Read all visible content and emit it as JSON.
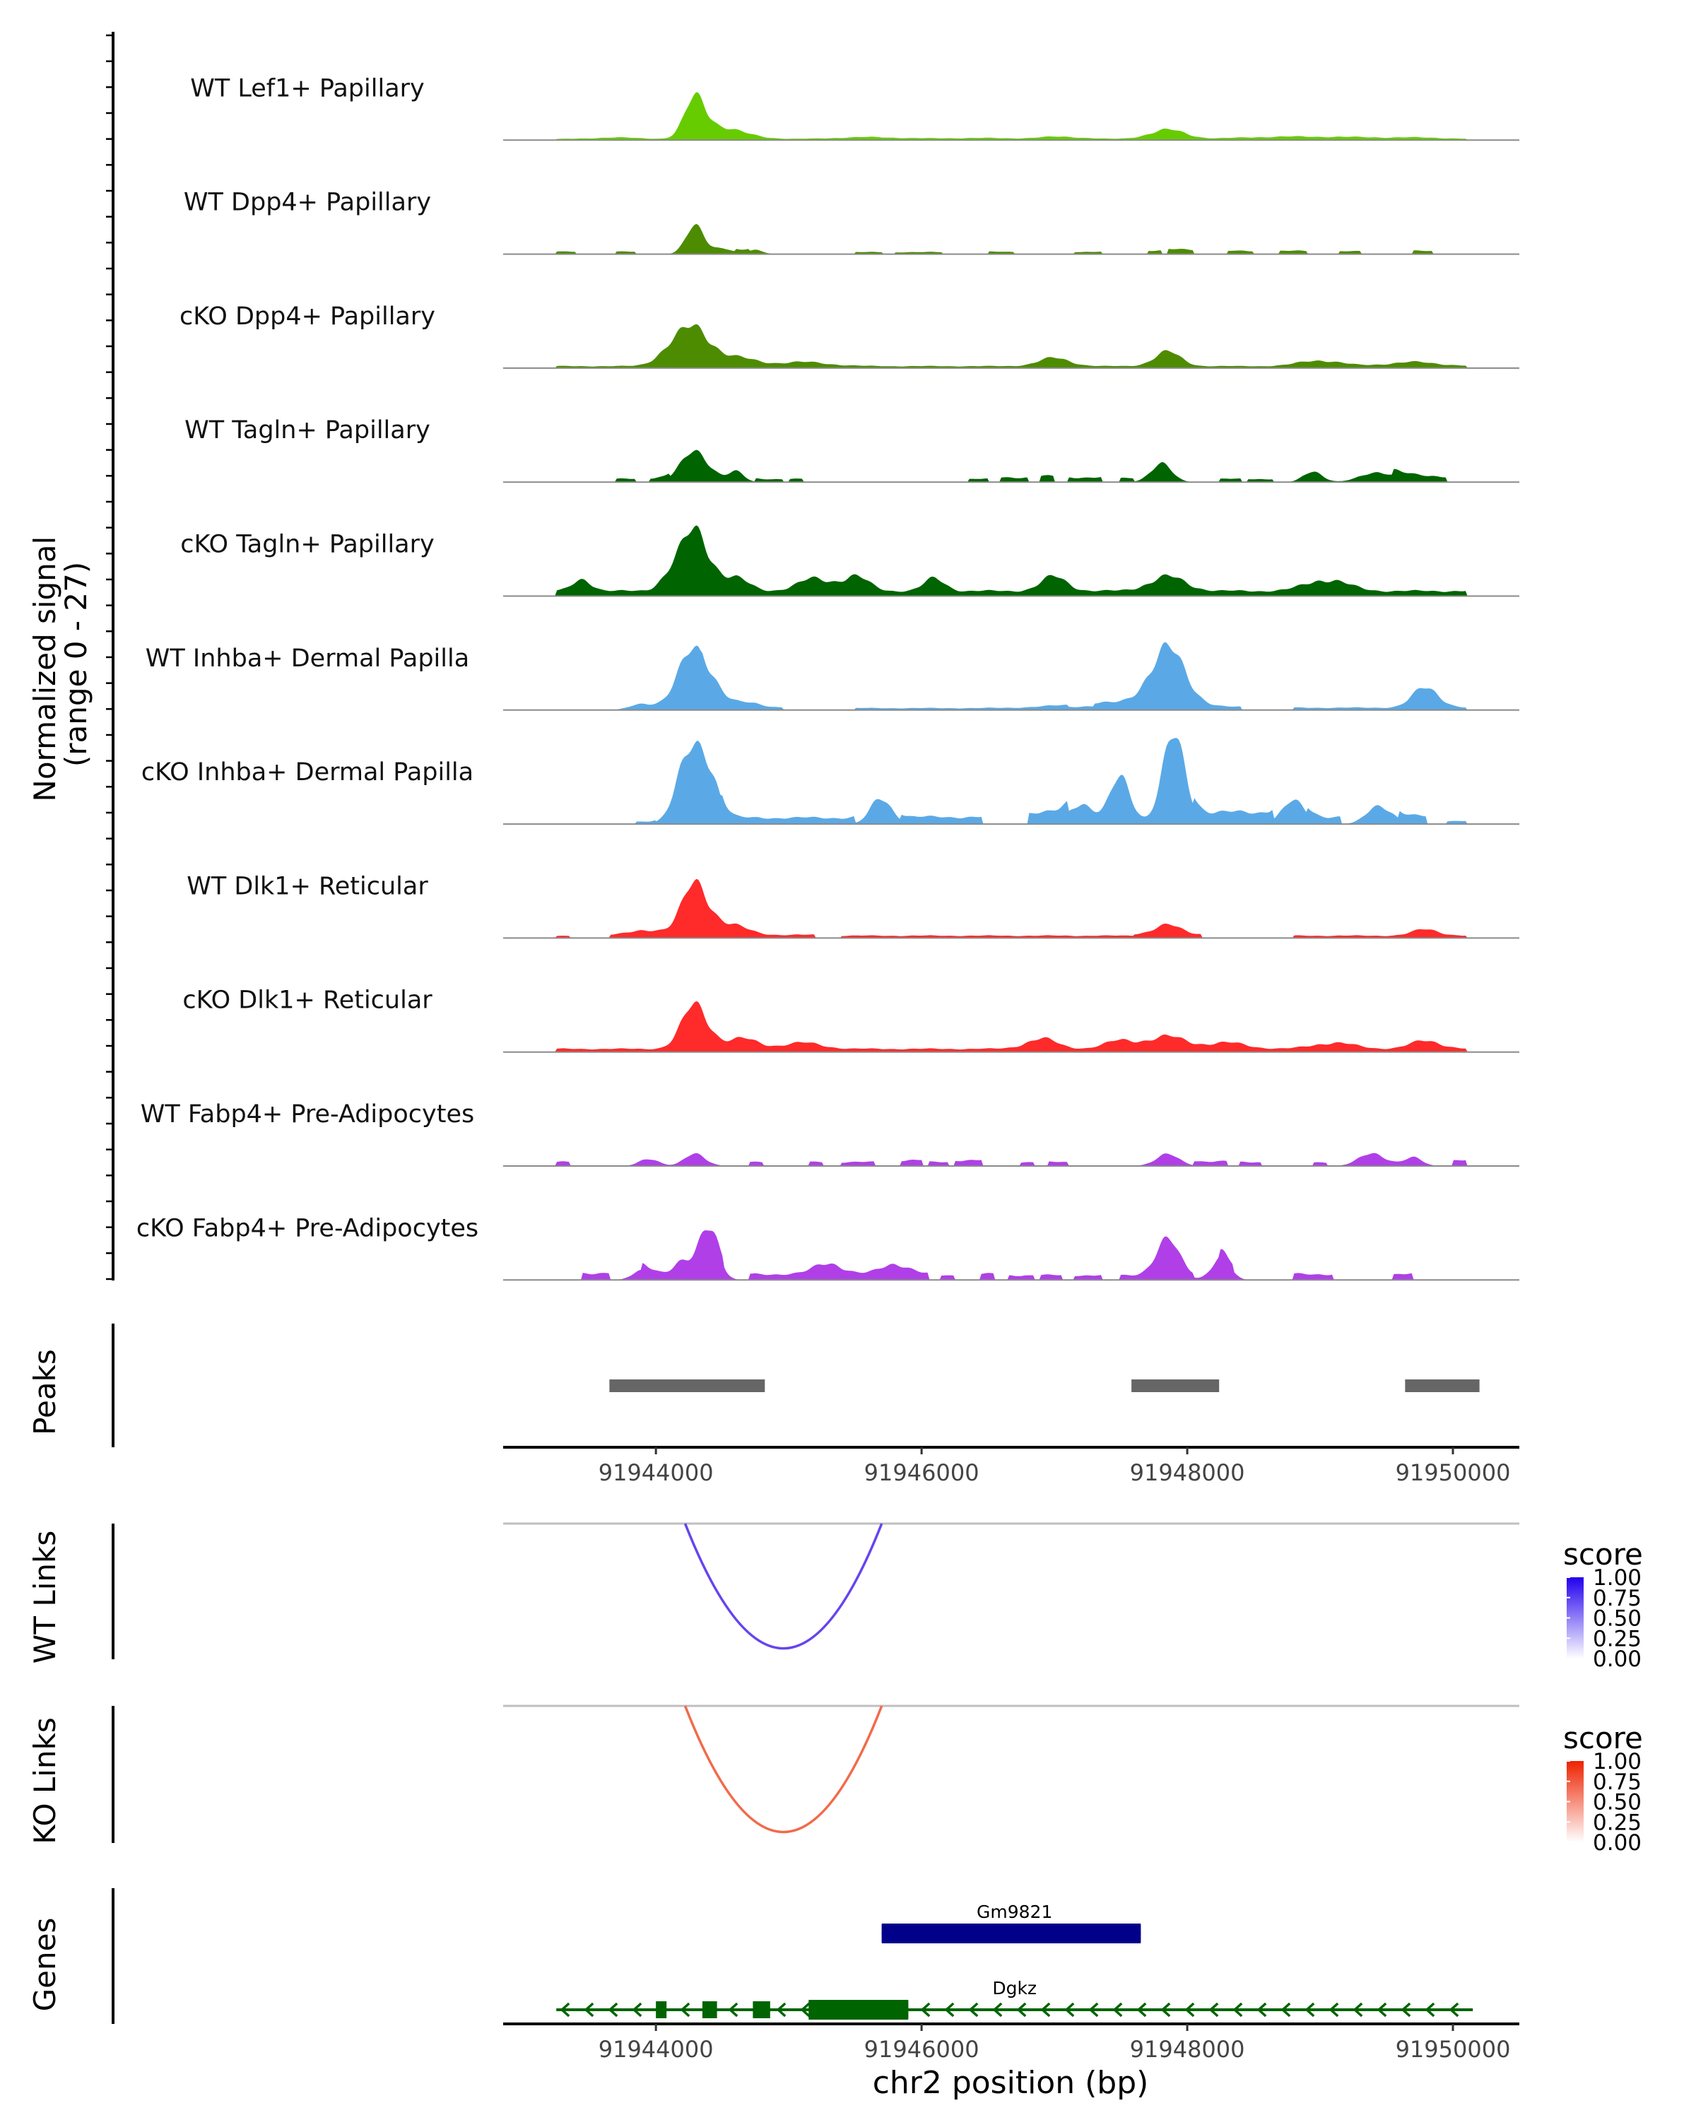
{
  "chart_data": {
    "type": "area",
    "region": {
      "chrom": "chr2",
      "start": 91942850,
      "end": 91950500
    },
    "xlabel": "chr2 position (bp)",
    "xticks": [
      91944000,
      91946000,
      91948000,
      91950000
    ],
    "signal_axis": {
      "label_line1": "Normalized signal",
      "label_line2": "(range 0 - 27)",
      "range": [
        0,
        27
      ]
    },
    "tracks": [
      {
        "name": "WT Lef1+ Papillary",
        "color": "#66cc00",
        "peaks": [
          [
            91944300,
            9.5,
            80
          ],
          [
            91944450,
            2.5,
            130
          ],
          [
            91944650,
            1.0,
            150
          ],
          [
            91943700,
            0.4,
            200
          ],
          [
            91945600,
            0.5,
            260
          ],
          [
            91946400,
            0.3,
            250
          ],
          [
            91947050,
            0.6,
            180
          ],
          [
            91947850,
            2.3,
            140
          ],
          [
            91948600,
            0.5,
            260
          ],
          [
            91949100,
            0.5,
            260
          ],
          [
            91949700,
            0.4,
            260
          ]
        ],
        "bins": [
          [
            91943250,
            91950100,
            0.25
          ]
        ]
      },
      {
        "name": "WT Dpp4+ Papillary",
        "color": "#4d8c00",
        "peaks": [
          [
            91944300,
            7.0,
            70
          ],
          [
            91944500,
            1.5,
            70
          ],
          [
            91944750,
            1.0,
            60
          ]
        ],
        "bins": [
          [
            91943250,
            91943400,
            0.6
          ],
          [
            91943700,
            91943850,
            0.6
          ],
          [
            91944600,
            91944700,
            0.6
          ],
          [
            91945500,
            91945700,
            0.5
          ],
          [
            91945800,
            91946150,
            0.5
          ],
          [
            91946500,
            91946700,
            0.6
          ],
          [
            91947150,
            91947350,
            0.6
          ],
          [
            91947700,
            91947800,
            0.9
          ],
          [
            91947850,
            91948050,
            1.2
          ],
          [
            91948300,
            91948500,
            0.8
          ],
          [
            91948700,
            91948900,
            0.8
          ],
          [
            91949150,
            91949300,
            0.7
          ],
          [
            91949700,
            91949850,
            0.8
          ]
        ]
      },
      {
        "name": "cKO Dpp4+ Papillary",
        "color": "#4d8c00",
        "peaks": [
          [
            91944300,
            9.0,
            120
          ],
          [
            91944100,
            3.5,
            100
          ],
          [
            91944600,
            2.0,
            150
          ],
          [
            91945100,
            1.0,
            200
          ],
          [
            91947000,
            2.0,
            120
          ],
          [
            91947850,
            3.5,
            100
          ],
          [
            91949000,
            1.5,
            150
          ],
          [
            91949700,
            1.0,
            200
          ]
        ],
        "bins": [
          [
            91943250,
            91950100,
            0.5
          ]
        ]
      },
      {
        "name": "WT Tagln+ Papillary",
        "color": "#006400",
        "peaks": [
          [
            91944300,
            7.5,
            110
          ],
          [
            91944600,
            2.5,
            60
          ],
          [
            91947800,
            4.5,
            80
          ],
          [
            91948950,
            2.8,
            70
          ],
          [
            91949450,
            2.6,
            130
          ]
        ],
        "bins": [
          [
            91943700,
            91943850,
            0.8
          ],
          [
            91943950,
            91944100,
            1.0
          ],
          [
            91944750,
            91944950,
            0.8
          ],
          [
            91945000,
            91945100,
            0.8
          ],
          [
            91946350,
            91946500,
            0.8
          ],
          [
            91946600,
            91946800,
            1.2
          ],
          [
            91946900,
            91947000,
            1.5
          ],
          [
            91947100,
            91947350,
            1.2
          ],
          [
            91947500,
            91947600,
            1.0
          ],
          [
            91948250,
            91948400,
            0.8
          ],
          [
            91948450,
            91948650,
            0.8
          ],
          [
            91949550,
            91949950,
            1.5
          ]
        ]
      },
      {
        "name": "cKO Tagln+ Papillary",
        "color": "#006400",
        "peaks": [
          [
            91944300,
            15.0,
            110
          ],
          [
            91944100,
            3.0,
            80
          ],
          [
            91944600,
            3.0,
            100
          ],
          [
            91943450,
            3.0,
            70
          ],
          [
            91945200,
            3.0,
            130
          ],
          [
            91945500,
            3.5,
            100
          ],
          [
            91946100,
            3.0,
            80
          ],
          [
            91947000,
            3.5,
            100
          ],
          [
            91947850,
            3.5,
            140
          ],
          [
            91949050,
            3.0,
            150
          ]
        ],
        "bins": [
          [
            91943250,
            91950100,
            1.3
          ]
        ]
      },
      {
        "name": "WT Inhba+ Dermal Papilla",
        "color": "#5aa9e6",
        "peaks": [
          [
            91944300,
            15.0,
            130
          ],
          [
            91947850,
            14.0,
            140
          ],
          [
            91949800,
            5.0,
            100
          ],
          [
            91943900,
            1.5,
            90
          ],
          [
            91947300,
            1.0,
            300
          ],
          [
            91944700,
            1.0,
            100
          ]
        ],
        "bins": [
          [
            91944350,
            91944950,
            0.7
          ],
          [
            91945500,
            91947100,
            0.5
          ],
          [
            91947300,
            91948400,
            0.8
          ],
          [
            91948800,
            91950100,
            0.6
          ]
        ]
      },
      {
        "name": "cKO Inhba+ Dermal Papilla",
        "color": "#5aa9e6",
        "peaks": [
          [
            91944250,
            15.5,
            100
          ],
          [
            91944400,
            12.0,
            80
          ],
          [
            91945700,
            6.5,
            80
          ],
          [
            91947200,
            5.5,
            90
          ],
          [
            91947500,
            11.5,
            80
          ],
          [
            91947900,
            21.0,
            90
          ],
          [
            91948800,
            5.5,
            90
          ],
          [
            91949450,
            5.0,
            90
          ]
        ],
        "bins": [
          [
            91943850,
            91944000,
            0.6
          ],
          [
            91944500,
            91945500,
            1.6
          ],
          [
            91945850,
            91946450,
            1.8
          ],
          [
            91946800,
            91947100,
            2.8
          ],
          [
            91948050,
            91948650,
            3.0
          ],
          [
            91948900,
            91949150,
            1.8
          ],
          [
            91949600,
            91949800,
            2.0
          ],
          [
            91949950,
            91950100,
            0.8
          ]
        ]
      },
      {
        "name": "WT Dlk1+ Reticular",
        "color": "#ff2a2a",
        "peaks": [
          [
            91944300,
            12.5,
            100
          ],
          [
            91944550,
            2.5,
            130
          ],
          [
            91943950,
            1.3,
            120
          ],
          [
            91947850,
            2.2,
            100
          ],
          [
            91949800,
            1.6,
            100
          ]
        ],
        "bins": [
          [
            91943250,
            91943350,
            0.5
          ],
          [
            91943650,
            91945200,
            0.8
          ],
          [
            91945400,
            91947600,
            0.6
          ],
          [
            91947600,
            91948100,
            1.0
          ],
          [
            91948800,
            91950100,
            0.6
          ]
        ]
      },
      {
        "name": "cKO Dlk1+ Reticular",
        "color": "#ff2a2a",
        "peaks": [
          [
            91944300,
            11.0,
            100
          ],
          [
            91944650,
            2.5,
            120
          ],
          [
            91945100,
            1.5,
            150
          ],
          [
            91946900,
            2.5,
            120
          ],
          [
            91947500,
            2.0,
            120
          ],
          [
            91947850,
            3.0,
            150
          ],
          [
            91948300,
            1.5,
            150
          ],
          [
            91949100,
            1.6,
            150
          ],
          [
            91949800,
            2.0,
            120
          ]
        ],
        "bins": [
          [
            91943250,
            91950100,
            0.8
          ]
        ]
      },
      {
        "name": "WT Fabp4+ Pre-Adipocytes",
        "color": "#b03fe8",
        "peaks": [
          [
            91944300,
            3.0,
            80
          ],
          [
            91943950,
            2.0,
            70
          ],
          [
            91947850,
            2.8,
            90
          ],
          [
            91949400,
            3.3,
            100
          ],
          [
            91949700,
            2.0,
            70
          ]
        ],
        "bins": [
          [
            91943250,
            91943350,
            1.0
          ],
          [
            91944700,
            91944800,
            1.0
          ],
          [
            91945150,
            91945250,
            1.0
          ],
          [
            91945400,
            91945650,
            1.0
          ],
          [
            91945850,
            91946000,
            1.5
          ],
          [
            91946050,
            91946200,
            1.0
          ],
          [
            91946250,
            91946450,
            1.5
          ],
          [
            91946750,
            91946850,
            1.0
          ],
          [
            91946950,
            91947100,
            1.0
          ],
          [
            91948050,
            91948300,
            1.2
          ],
          [
            91948400,
            91948550,
            1.0
          ],
          [
            91948950,
            91949050,
            1.0
          ],
          [
            91950000,
            91950100,
            1.5
          ]
        ]
      },
      {
        "name": "cKO Fabp4+ Pre-Adipocytes",
        "color": "#b03fe8",
        "peaks": [
          [
            91944400,
            13.5,
            70
          ],
          [
            91945800,
            2.8,
            100
          ],
          [
            91947850,
            8.5,
            90
          ],
          [
            91948250,
            5.5,
            70
          ],
          [
            91943900,
            2.5,
            70
          ],
          [
            91945300,
            3.0,
            100
          ],
          [
            91944200,
            2.5,
            60
          ]
        ],
        "bins": [
          [
            91943450,
            91943650,
            1.8
          ],
          [
            91943900,
            91944500,
            1.8
          ],
          [
            91944700,
            91945300,
            1.5
          ],
          [
            91945300,
            91946050,
            1.5
          ],
          [
            91946150,
            91946250,
            1.2
          ],
          [
            91946450,
            91946550,
            1.5
          ],
          [
            91946650,
            91946850,
            1.2
          ],
          [
            91946900,
            91947050,
            1.2
          ],
          [
            91947150,
            91947350,
            1.2
          ],
          [
            91947500,
            91948050,
            1.2
          ],
          [
            91948250,
            91948350,
            1.5
          ],
          [
            91948800,
            91949100,
            1.5
          ],
          [
            91949550,
            91949700,
            1.5
          ]
        ]
      }
    ],
    "peaks_track": {
      "label": "Peaks",
      "color": "#666666",
      "intervals": [
        [
          91943650,
          91944820
        ],
        [
          91947580,
          91948240
        ],
        [
          91949640,
          91950200
        ]
      ]
    },
    "links": [
      {
        "label": "WT Links",
        "start": 91944220,
        "end": 91945700,
        "score": 0.75,
        "color": "#6644ee",
        "legend": {
          "title": "score",
          "ticks": [
            "1.00",
            "0.75",
            "0.50",
            "0.25",
            "0.00"
          ],
          "colors": [
            "#ffffff",
            "#2200ee"
          ]
        }
      },
      {
        "label": "KO Links",
        "start": 91944220,
        "end": 91945700,
        "score": 0.75,
        "color": "#f26a4a",
        "legend": {
          "title": "score",
          "ticks": [
            "1.00",
            "0.75",
            "0.50",
            "0.25",
            "0.00"
          ],
          "colors": [
            "#ffffff",
            "#ee2200"
          ]
        }
      }
    ],
    "genes_track": {
      "label": "Genes",
      "genes": [
        {
          "name": "Gm9821",
          "color": "#00008b",
          "strand": "-",
          "start": 91945700,
          "end": 91947650,
          "exons": [
            [
              91945700,
              91947650
            ]
          ],
          "thick": [
            [
              91945700,
              91947650
            ]
          ]
        },
        {
          "name": "Dgkz",
          "color": "#006400",
          "strand": "-",
          "start": 91943250,
          "end": 91950150,
          "exons": [
            [
              91944000,
              91944080
            ],
            [
              91944350,
              91944450
            ],
            [
              91944420,
              91944460
            ],
            [
              91944730,
              91944860
            ],
            [
              91945150,
              91945900
            ]
          ],
          "thick": [
            [
              91945150,
              91945900
            ]
          ]
        }
      ]
    }
  }
}
